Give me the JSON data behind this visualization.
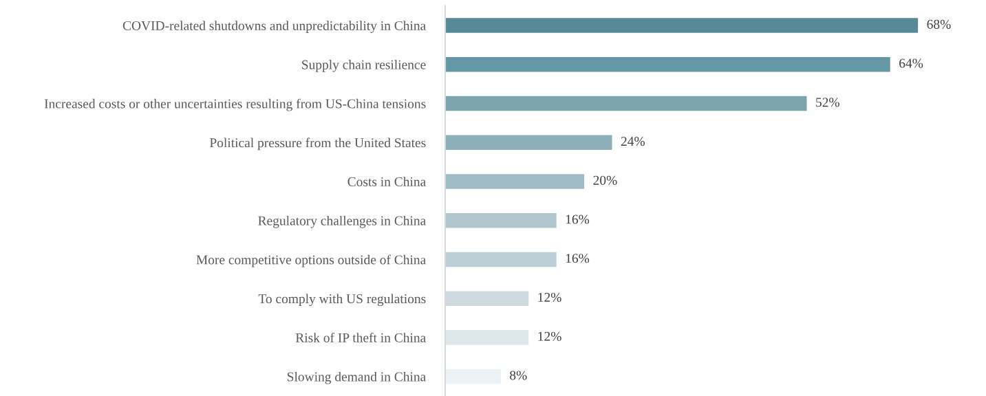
{
  "chart_data": {
    "type": "bar",
    "orientation": "horizontal",
    "data_labels": true,
    "tick_labels": "y",
    "grid": false,
    "categories": [
      "COVID-related shutdowns and unpredictability in China",
      "Supply chain resilience",
      "Increased costs or other uncertainties resulting from US-China tensions",
      "Political pressure from the United States",
      "Costs in China",
      "Regulatory challenges in China",
      "More competitive options outside of China",
      "To comply with US regulations",
      "Risk of IP theft in China",
      "Slowing demand in China"
    ],
    "values": [
      68,
      64,
      52,
      24,
      20,
      16,
      16,
      12,
      12,
      8
    ],
    "value_labels": [
      "68%",
      "64%",
      "52%",
      "24%",
      "20%",
      "16%",
      "16%",
      "12%",
      "12%",
      "8%"
    ],
    "colors": [
      "#578a96",
      "#6598a4",
      "#7ba4ae",
      "#8cafba",
      "#9fbcc5",
      "#afc6cd",
      "#bccfd6",
      "#cddbe0",
      "#dde6ea",
      "#edf2f4"
    ]
  }
}
